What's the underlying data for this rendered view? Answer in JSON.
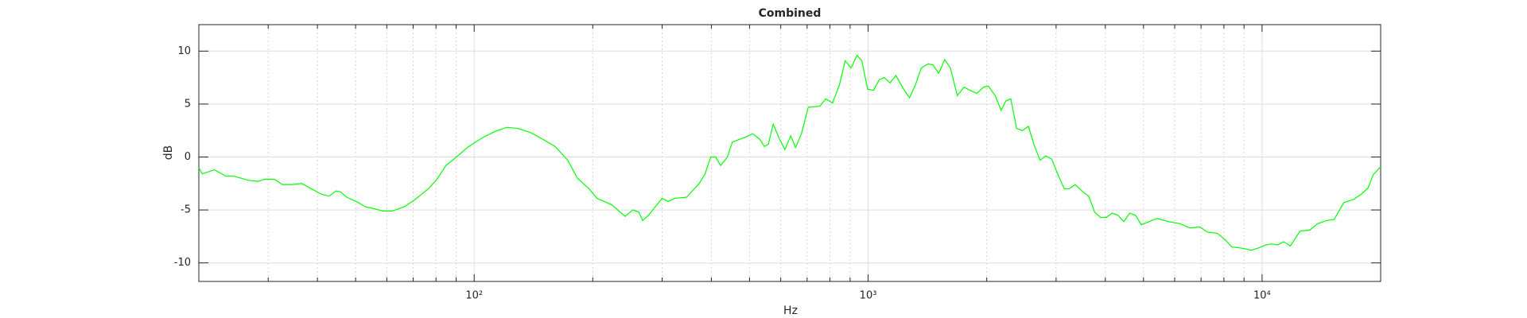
{
  "chart_data": {
    "type": "line",
    "title": "Combined",
    "xlabel": "Hz",
    "ylabel": "dB",
    "xscale": "log",
    "grid": true,
    "minor_grid": true,
    "xlim": [
      20,
      20000
    ],
    "ylim": [
      -11.75,
      12.5
    ],
    "xticks": [
      {
        "value": 100,
        "label": "10²"
      },
      {
        "value": 1000,
        "label": "10³"
      },
      {
        "value": 10000,
        "label": "10⁴"
      }
    ],
    "xminorticks": [
      20,
      30,
      40,
      50,
      60,
      70,
      80,
      90,
      200,
      300,
      400,
      500,
      600,
      700,
      800,
      900,
      2000,
      3000,
      4000,
      5000,
      6000,
      7000,
      8000,
      9000,
      20000
    ],
    "yticks": [
      -10,
      -5,
      0,
      5,
      10
    ],
    "x": [
      20,
      20.4,
      21.9,
      23.4,
      24.5,
      26.7,
      28.3,
      29.4,
      31.1,
      32.6,
      34.5,
      36.5,
      38.6,
      40.9,
      42.8,
      44.6,
      45.8,
      47.5,
      50.8,
      52.9,
      56,
      58.6,
      62,
      66.4,
      70.3,
      76.5,
      80.1,
      84.8,
      90.8,
      96.1,
      104.7,
      112.7,
      120.7,
      129.1,
      139.1,
      149,
      160.4,
      172.7,
      182.8,
      195.7,
      204.9,
      223.2,
      241.6,
      252.9,
      261.7,
      267.7,
      277,
      300,
      310.5,
      323.1,
      345.9,
      372.5,
      385.4,
      398.7,
      410.3,
      422.2,
      439.4,
      452,
      489.4,
      509.3,
      530.1,
      545.4,
      558,
      574.1,
      594,
      614.6,
      636,
      654.4,
      677.2,
      704.7,
      754.3,
      780.6,
      812.3,
      845.4,
      874.8,
      905.1,
      936.7,
      963.6,
      997.2,
      1032,
      1068,
      1099,
      1137,
      1176,
      1231,
      1274,
      1318,
      1364,
      1419,
      1460,
      1511,
      1564,
      1618,
      1684,
      1752,
      1813,
      1887,
      1963,
      2020,
      2102,
      2175,
      2238,
      2302,
      2382,
      2465,
      2551,
      2640,
      2732,
      2827,
      2924,
      3043,
      3148,
      3240,
      3352,
      3509,
      3631,
      3757,
      3888,
      4023,
      4163,
      4308,
      4457,
      4612,
      4772,
      4937,
      5168,
      5408,
      5791,
      6200,
      6561,
      6948,
      7273,
      7697,
      8054,
      8382,
      8875,
      9393,
      9775,
      10230,
      10585,
      10954,
      11335,
      11797,
      12489,
      13220,
      13834,
      14562,
      15237,
      16130,
      17080,
      17870,
      18600,
      19130,
      20000
    ],
    "series": [
      {
        "name": "Combined",
        "color": "#00ff00",
        "values": [
          -1,
          -1.6,
          -1.2,
          -1.8,
          -1.8,
          -2.2,
          -2.3,
          -2.1,
          -2.1,
          -2.6,
          -2.6,
          -2.5,
          -3,
          -3.5,
          -3.7,
          -3.2,
          -3.3,
          -3.8,
          -4.3,
          -4.7,
          -4.9,
          -5.1,
          -5.1,
          -4.7,
          -4.1,
          -3,
          -2.2,
          -0.8,
          0.1,
          0.9,
          1.8,
          2.4,
          2.8,
          2.7,
          2.3,
          1.7,
          1,
          -0.3,
          -2,
          -3,
          -3.9,
          -4.5,
          -5.6,
          -5,
          -5.2,
          -6,
          -5.5,
          -3.9,
          -4.2,
          -3.9,
          -3.8,
          -2.5,
          -1.6,
          0,
          0,
          -0.8,
          0,
          1.4,
          1.9,
          2.2,
          1.7,
          1,
          1.2,
          3.1,
          1.8,
          0.7,
          2,
          0.9,
          2.2,
          4.7,
          4.8,
          5.5,
          5.1,
          6.8,
          9.1,
          8.4,
          9.6,
          9.1,
          6.4,
          6.3,
          7.3,
          7.5,
          7,
          7.7,
          6.4,
          5.6,
          6.8,
          8.4,
          8.8,
          8.7,
          7.9,
          9.2,
          8.4,
          5.8,
          6.6,
          6.3,
          6,
          6.6,
          6.7,
          5.8,
          4.4,
          5.3,
          5.5,
          2.7,
          2.5,
          2.9,
          1.1,
          -0.3,
          0.1,
          -0.2,
          -1.8,
          -3,
          -3,
          -2.6,
          -3.3,
          -3.7,
          -5.2,
          -5.7,
          -5.7,
          -5.3,
          -5.5,
          -6.1,
          -5.3,
          -5.5,
          -6.4,
          -6.1,
          -5.8,
          -6.1,
          -6.3,
          -6.7,
          -6.6,
          -7.1,
          -7.2,
          -7.8,
          -8.5,
          -8.6,
          -8.8,
          -8.6,
          -8.3,
          -8.2,
          -8.3,
          -8,
          -8.4,
          -7,
          -6.9,
          -6.3,
          -6,
          -5.9,
          -4.3,
          -4,
          -3.5,
          -2.9,
          -1.7,
          -0.9
        ]
      }
    ]
  }
}
